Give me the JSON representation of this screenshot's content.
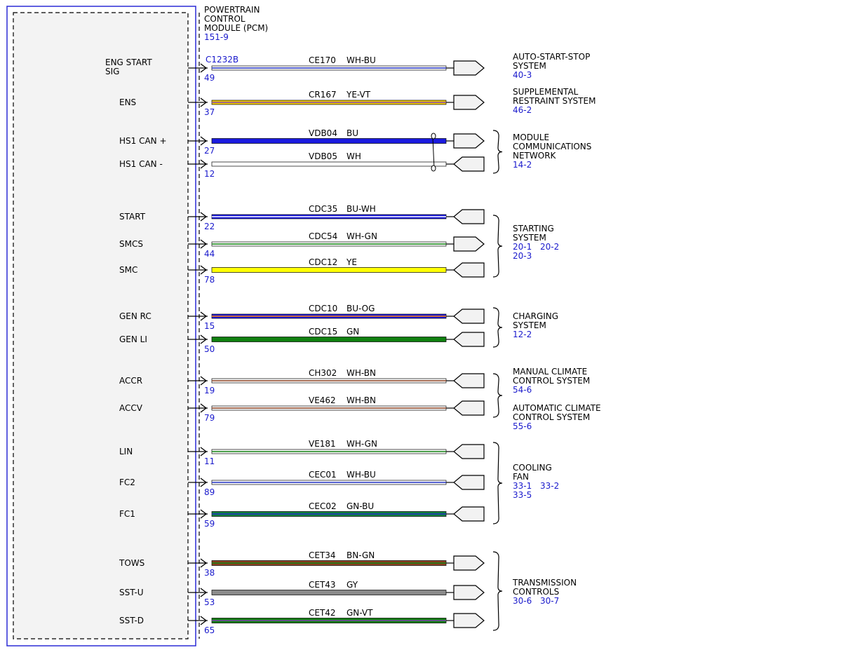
{
  "module": {
    "title_lines": [
      "POWERTRAIN",
      "CONTROL",
      "MODULE (PCM)"
    ],
    "page_ref": "151-9",
    "connector": "C1232B"
  },
  "circuits": [
    {
      "signal": [
        "ENG START",
        "SIG"
      ],
      "pin": "49",
      "circuit": "CE170",
      "color_code": "WH-BU",
      "colors": [
        "#ffffff",
        "#2030c0"
      ],
      "dir": "out"
    },
    {
      "signal": [
        "ENS"
      ],
      "pin": "37",
      "circuit": "CR167",
      "color_code": "YE-VT",
      "colors": [
        "#f5d000",
        "#8040b0"
      ],
      "dir": "out"
    },
    {
      "signal": [
        "HS1 CAN +"
      ],
      "pin": "27",
      "circuit": "VDB04",
      "color_code": "BU",
      "colors": [
        "#1a1ae0"
      ],
      "dir": "out"
    },
    {
      "signal": [
        "HS1 CAN -"
      ],
      "pin": "12",
      "circuit": "VDB05",
      "color_code": "WH",
      "colors": [
        "#ffffff"
      ],
      "dir": "in"
    },
    {
      "signal": [
        "START"
      ],
      "pin": "22",
      "circuit": "CDC35",
      "color_code": "BU-WH",
      "colors": [
        "#1a1ae0",
        "#ffffff"
      ],
      "dir": "in"
    },
    {
      "signal": [
        "SMCS"
      ],
      "pin": "44",
      "circuit": "CDC54",
      "color_code": "WH-GN",
      "colors": [
        "#ffffff",
        "#108010"
      ],
      "dir": "out"
    },
    {
      "signal": [
        "SMC"
      ],
      "pin": "78",
      "circuit": "CDC12",
      "color_code": "YE",
      "colors": [
        "#ffff00"
      ],
      "dir": "in"
    },
    {
      "signal": [
        "GEN RC"
      ],
      "pin": "15",
      "circuit": "CDC10",
      "color_code": "BU-OG",
      "colors": [
        "#1a1ae0",
        "#ff8000"
      ],
      "dir": "in"
    },
    {
      "signal": [
        "GEN LI"
      ],
      "pin": "50",
      "circuit": "CDC15",
      "color_code": "GN",
      "colors": [
        "#108010"
      ],
      "dir": "in"
    },
    {
      "signal": [
        "ACCR"
      ],
      "pin": "19",
      "circuit": "CH302",
      "color_code": "WH-BN",
      "colors": [
        "#ffffff",
        "#8a4020"
      ],
      "dir": "in"
    },
    {
      "signal": [
        "ACCV"
      ],
      "pin": "79",
      "circuit": "VE462",
      "color_code": "WH-BN",
      "colors": [
        "#ffffff",
        "#8a4020"
      ],
      "dir": "in"
    },
    {
      "signal": [
        "LIN"
      ],
      "pin": "11",
      "circuit": "VE181",
      "color_code": "WH-GN",
      "colors": [
        "#ffffff",
        "#108010"
      ],
      "dir": "in"
    },
    {
      "signal": [
        "FC2"
      ],
      "pin": "89",
      "circuit": "CEC01",
      "color_code": "WH-BU",
      "colors": [
        "#ffffff",
        "#2030c0"
      ],
      "dir": "in"
    },
    {
      "signal": [
        "FC1"
      ],
      "pin": "59",
      "circuit": "CEC02",
      "color_code": "GN-BU",
      "colors": [
        "#108040",
        "#2030c0"
      ],
      "dir": "in"
    },
    {
      "signal": [
        "TOWS"
      ],
      "pin": "38",
      "circuit": "CET34",
      "color_code": "BN-GN",
      "colors": [
        "#8a4020",
        "#108010"
      ],
      "dir": "out"
    },
    {
      "signal": [
        "SST-U"
      ],
      "pin": "53",
      "circuit": "CET43",
      "color_code": "GY",
      "colors": [
        "#8a8a8a"
      ],
      "dir": "out"
    },
    {
      "signal": [
        "SST-D"
      ],
      "pin": "65",
      "circuit": "CET42",
      "color_code": "GN-VT",
      "colors": [
        "#108010",
        "#8040b0"
      ],
      "dir": "out"
    }
  ],
  "systems": [
    {
      "name_lines": [
        "AUTO-START-STOP",
        "SYSTEM"
      ],
      "refs": [
        "40-3"
      ]
    },
    {
      "name_lines": [
        "SUPPLEMENTAL",
        "RESTRAINT SYSTEM"
      ],
      "refs": [
        "46-2"
      ]
    },
    {
      "name_lines": [
        "MODULE",
        "COMMUNICATIONS",
        "NETWORK"
      ],
      "refs": [
        "14-2"
      ]
    },
    {
      "name_lines": [
        "STARTING",
        "SYSTEM"
      ],
      "refs": [
        "20-1",
        "20-2",
        "20-3"
      ]
    },
    {
      "name_lines": [
        "CHARGING",
        "SYSTEM"
      ],
      "refs": [
        "12-2"
      ]
    },
    {
      "name_lines": [
        "MANUAL CLIMATE",
        "CONTROL SYSTEM"
      ],
      "refs": [
        "54-6"
      ]
    },
    {
      "name_lines": [
        "AUTOMATIC CLIMATE",
        "CONTROL SYSTEM"
      ],
      "refs": [
        "55-6"
      ]
    },
    {
      "name_lines": [
        "COOLING",
        "FAN"
      ],
      "refs": [
        "33-1",
        "33-2",
        "33-5"
      ]
    },
    {
      "name_lines": [
        "TRANSMISSION",
        "CONTROLS"
      ],
      "refs": [
        "30-6",
        "30-7"
      ]
    }
  ]
}
